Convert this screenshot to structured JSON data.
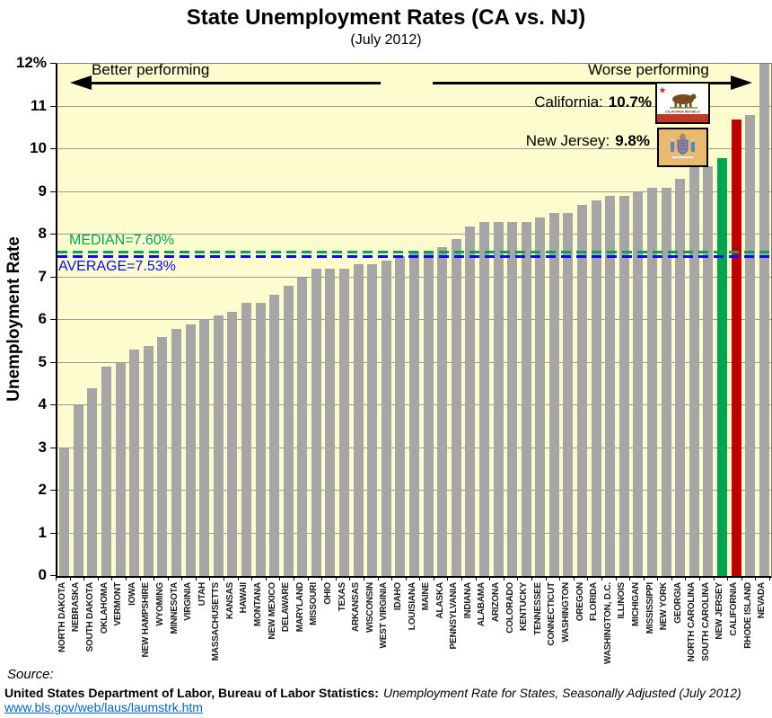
{
  "title": "State Unemployment Rates (CA vs. NJ)",
  "subtitle": "(July 2012)",
  "y_axis_title": "Unemployment Rate",
  "annotations": {
    "better_performing": "Better performing",
    "worse_performing": "Worse performing",
    "median_label": "MEDIAN=7.60%",
    "average_label": "AVERAGE=7.53%",
    "california_label": "California:",
    "california_value": "10.7%",
    "new_jersey_label": "New Jersey:",
    "new_jersey_value": "9.8%"
  },
  "footer": {
    "source_label": "Source:",
    "attribution_bold": "United States Department of Labor, Bureau of Labor Statistics:",
    "attribution_italic": "Unemployment Rate for States, Seasonally Adjusted  (July 2012)",
    "link": "www.bls.gov/web/laus/laumstrk.htm"
  },
  "colors": {
    "plot_background": "#FCFCCE",
    "bar_default": "#A6A6A6",
    "bar_new_jersey": "#00A550",
    "bar_california": "#C00000",
    "median_line": "#00A550",
    "average_line": "#0A0AF0",
    "link": "#0563C1"
  },
  "chart_data": {
    "type": "bar",
    "title": "State Unemployment Rates (CA vs. NJ)",
    "subtitle": "(July 2012)",
    "xlabel": "",
    "ylabel": "Unemployment Rate",
    "ylim": [
      0,
      12
    ],
    "ytick_interval": 1,
    "y_max_suffix": "%",
    "grid": true,
    "median": 7.6,
    "average": 7.53,
    "categories": [
      "NORTH DAKOTA",
      "NEBRASKA",
      "SOUTH DAKOTA",
      "OKLAHOMA",
      "VERMONT",
      "IOWA",
      "NEW HAMPSHIRE",
      "WYOMING",
      "MINNESOTA",
      "VIRGINIA",
      "UTAH",
      "MASSACHUSETTS",
      "KANSAS",
      "HAWAII",
      "MONTANA",
      "NEW MEXICO",
      "DELAWARE",
      "MARYLAND",
      "MISSOURI",
      "OHIO",
      "TEXAS",
      "ARKANSAS",
      "WISCONSIN",
      "WEST VIRGINIA",
      "IDAHO",
      "LOUISIANA",
      "MAINE",
      "ALASKA",
      "PENNSYLVANIA",
      "INDIANA",
      "ALABAMA",
      "ARIZONA",
      "COLORADO",
      "KENTUCKY",
      "TENNESSEE",
      "CONNECTICUT",
      "WASHINGTON",
      "OREGON",
      "FLORIDA",
      "WASHINGTON, D.C.",
      "ILLINOIS",
      "MICHIGAN",
      "MISSISSIPPI",
      "NEW YORK",
      "GEORGIA",
      "NORTH CAROLINA",
      "SOUTH CAROLINA",
      "NEW JERSEY",
      "CALIFORNIA",
      "RHODE ISLAND",
      "NEVADA"
    ],
    "values": [
      3.0,
      4.0,
      4.4,
      4.9,
      5.0,
      5.3,
      5.4,
      5.6,
      5.8,
      5.9,
      6.0,
      6.1,
      6.2,
      6.4,
      6.4,
      6.6,
      6.8,
      7.0,
      7.2,
      7.2,
      7.2,
      7.3,
      7.3,
      7.4,
      7.5,
      7.6,
      7.6,
      7.7,
      7.9,
      8.2,
      8.3,
      8.3,
      8.3,
      8.3,
      8.4,
      8.5,
      8.5,
      8.7,
      8.8,
      8.9,
      8.9,
      9.0,
      9.1,
      9.1,
      9.3,
      9.6,
      9.6,
      9.8,
      10.7,
      10.8,
      12.0
    ],
    "highlights": {
      "NEW JERSEY": "#00A550",
      "CALIFORNIA": "#C00000"
    },
    "legend_position": "none"
  }
}
